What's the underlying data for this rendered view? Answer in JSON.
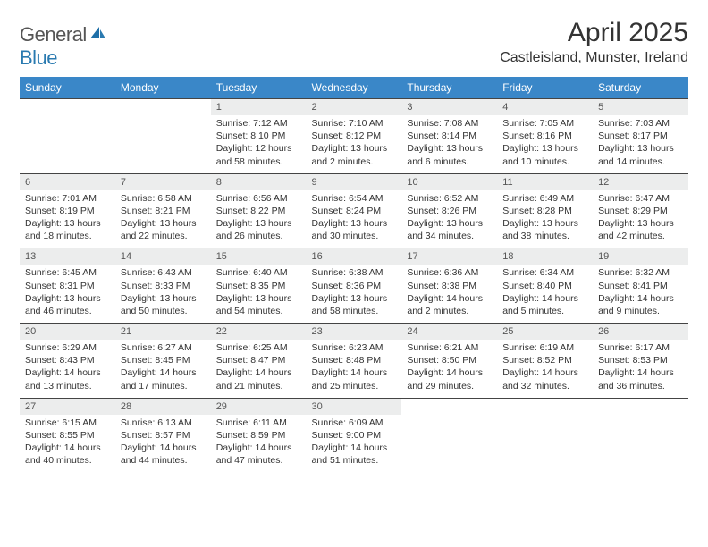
{
  "brand": {
    "part1": "General",
    "part2": "Blue"
  },
  "title": "April 2025",
  "location": "Castleisland, Munster, Ireland",
  "colors": {
    "header_bg": "#3a87c8",
    "header_text": "#ffffff",
    "daynum_bg": "#eceded",
    "row_divider": "#444444",
    "text": "#333333",
    "brand_gray": "#555555",
    "brand_blue": "#2a7ab0",
    "page_bg": "#ffffff"
  },
  "typography": {
    "title_fontsize": 30,
    "location_fontsize": 16,
    "header_fontsize": 12,
    "daynum_fontsize": 11,
    "cell_fontsize": 10.5
  },
  "weekdays": [
    "Sunday",
    "Monday",
    "Tuesday",
    "Wednesday",
    "Thursday",
    "Friday",
    "Saturday"
  ],
  "weeks": [
    [
      null,
      null,
      {
        "n": "1",
        "sr": "7:12 AM",
        "ss": "8:10 PM",
        "dl": "12 hours and 58 minutes."
      },
      {
        "n": "2",
        "sr": "7:10 AM",
        "ss": "8:12 PM",
        "dl": "13 hours and 2 minutes."
      },
      {
        "n": "3",
        "sr": "7:08 AM",
        "ss": "8:14 PM",
        "dl": "13 hours and 6 minutes."
      },
      {
        "n": "4",
        "sr": "7:05 AM",
        "ss": "8:16 PM",
        "dl": "13 hours and 10 minutes."
      },
      {
        "n": "5",
        "sr": "7:03 AM",
        "ss": "8:17 PM",
        "dl": "13 hours and 14 minutes."
      }
    ],
    [
      {
        "n": "6",
        "sr": "7:01 AM",
        "ss": "8:19 PM",
        "dl": "13 hours and 18 minutes."
      },
      {
        "n": "7",
        "sr": "6:58 AM",
        "ss": "8:21 PM",
        "dl": "13 hours and 22 minutes."
      },
      {
        "n": "8",
        "sr": "6:56 AM",
        "ss": "8:22 PM",
        "dl": "13 hours and 26 minutes."
      },
      {
        "n": "9",
        "sr": "6:54 AM",
        "ss": "8:24 PM",
        "dl": "13 hours and 30 minutes."
      },
      {
        "n": "10",
        "sr": "6:52 AM",
        "ss": "8:26 PM",
        "dl": "13 hours and 34 minutes."
      },
      {
        "n": "11",
        "sr": "6:49 AM",
        "ss": "8:28 PM",
        "dl": "13 hours and 38 minutes."
      },
      {
        "n": "12",
        "sr": "6:47 AM",
        "ss": "8:29 PM",
        "dl": "13 hours and 42 minutes."
      }
    ],
    [
      {
        "n": "13",
        "sr": "6:45 AM",
        "ss": "8:31 PM",
        "dl": "13 hours and 46 minutes."
      },
      {
        "n": "14",
        "sr": "6:43 AM",
        "ss": "8:33 PM",
        "dl": "13 hours and 50 minutes."
      },
      {
        "n": "15",
        "sr": "6:40 AM",
        "ss": "8:35 PM",
        "dl": "13 hours and 54 minutes."
      },
      {
        "n": "16",
        "sr": "6:38 AM",
        "ss": "8:36 PM",
        "dl": "13 hours and 58 minutes."
      },
      {
        "n": "17",
        "sr": "6:36 AM",
        "ss": "8:38 PM",
        "dl": "14 hours and 2 minutes."
      },
      {
        "n": "18",
        "sr": "6:34 AM",
        "ss": "8:40 PM",
        "dl": "14 hours and 5 minutes."
      },
      {
        "n": "19",
        "sr": "6:32 AM",
        "ss": "8:41 PM",
        "dl": "14 hours and 9 minutes."
      }
    ],
    [
      {
        "n": "20",
        "sr": "6:29 AM",
        "ss": "8:43 PM",
        "dl": "14 hours and 13 minutes."
      },
      {
        "n": "21",
        "sr": "6:27 AM",
        "ss": "8:45 PM",
        "dl": "14 hours and 17 minutes."
      },
      {
        "n": "22",
        "sr": "6:25 AM",
        "ss": "8:47 PM",
        "dl": "14 hours and 21 minutes."
      },
      {
        "n": "23",
        "sr": "6:23 AM",
        "ss": "8:48 PM",
        "dl": "14 hours and 25 minutes."
      },
      {
        "n": "24",
        "sr": "6:21 AM",
        "ss": "8:50 PM",
        "dl": "14 hours and 29 minutes."
      },
      {
        "n": "25",
        "sr": "6:19 AM",
        "ss": "8:52 PM",
        "dl": "14 hours and 32 minutes."
      },
      {
        "n": "26",
        "sr": "6:17 AM",
        "ss": "8:53 PM",
        "dl": "14 hours and 36 minutes."
      }
    ],
    [
      {
        "n": "27",
        "sr": "6:15 AM",
        "ss": "8:55 PM",
        "dl": "14 hours and 40 minutes."
      },
      {
        "n": "28",
        "sr": "6:13 AM",
        "ss": "8:57 PM",
        "dl": "14 hours and 44 minutes."
      },
      {
        "n": "29",
        "sr": "6:11 AM",
        "ss": "8:59 PM",
        "dl": "14 hours and 47 minutes."
      },
      {
        "n": "30",
        "sr": "6:09 AM",
        "ss": "9:00 PM",
        "dl": "14 hours and 51 minutes."
      },
      null,
      null,
      null
    ]
  ],
  "labels": {
    "sunrise": "Sunrise:",
    "sunset": "Sunset:",
    "daylight": "Daylight:"
  }
}
